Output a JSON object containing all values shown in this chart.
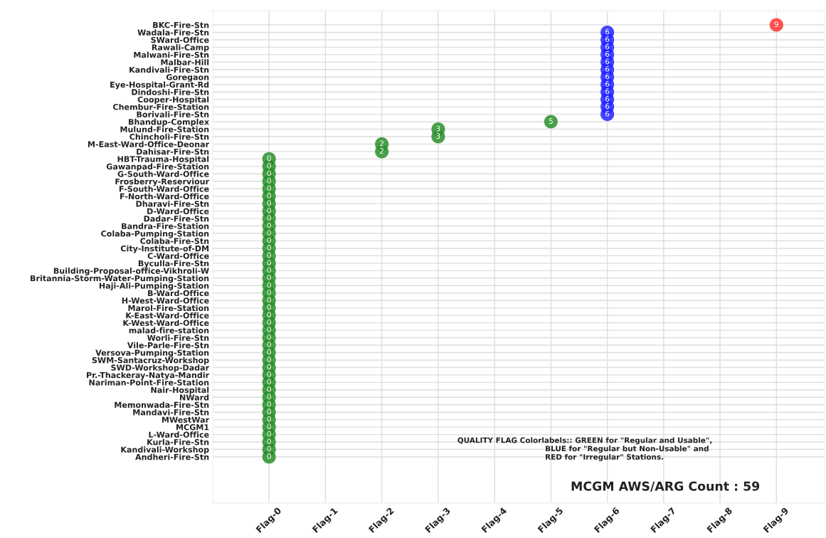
{
  "chart_data": {
    "type": "heatmap",
    "categories": [
      "Flag-0",
      "Flag-1",
      "Flag-2",
      "Flag-3",
      "Flag-4",
      "Flag-5",
      "Flag-6",
      "Flag-7",
      "Flag-8",
      "Flag-9"
    ],
    "y_categories": [
      "BKC-Fire-Stn",
      "Wadala-Fire-Stn",
      "SWard-Office",
      "Rawali-Camp",
      "Malwani-Fire-Stn",
      "Malbar-Hill",
      "Kandivali-Fire-Stn",
      "Goregaon",
      "Eye-Hospital-Grant-Rd",
      "Dindoshi-Fire-Stn",
      "Cooper-Hospital",
      "Chembur-Fire-Station",
      "Borivali-Fire-Stn",
      "Bhandup-Complex",
      "Mulund-Fire-Station",
      "Chincholi-Fire-Stn",
      "M-East-Ward-Office-Deonar",
      "Dahisar-Fire-Stn",
      "HBT-Trauma-Hospital",
      "Gawanpad-Fire-Station",
      "G-South-Ward-Office",
      "Frosberry-Reserviour",
      "F-South-Ward-Office",
      "F-North-Ward-Office",
      "Dharavi-Fire-Stn",
      "D-Ward-Office",
      "Dadar-Fire-Stn",
      "Bandra-Fire-Station",
      "Colaba-Pumping-Station",
      "Colaba-Fire-Stn",
      "City-Institute-of-DM",
      "C-Ward-Office",
      "Byculla-Fire-Stn",
      "Building-Proposal-office-Vikhroli-W",
      "Britannia-Storm-Water-Pumping-Station",
      "Haji-Ali-Pumping-Station",
      "B-Ward-Office",
      "H-West-Ward-Office",
      "Marol-Fire-Station",
      "K-East-Ward-Office",
      "K-West-Ward-Office",
      "malad-fire-station",
      "Worli-Fire-Stn",
      "Vile-Parle-Fire-Stn",
      "Versova-Pumping-Station",
      "SWM-Santacruz-Workshop",
      "SWD-Workshop-Dadar",
      "Pr.-Thackeray-Natya-Mandir",
      "Nariman-Point-Fire-Station",
      "Nair-Hospital",
      "NWard",
      "Memonwada-Fire-Stn",
      "Mandavi-Fire-Stn",
      "MWestWar",
      "MCGM1",
      "L-Ward-Office",
      "Kurla-Fire-Stn",
      "Kandivali-Workshop",
      "Andheri-Fire-Stn"
    ],
    "cells": [
      [
        null,
        null,
        null,
        null,
        null,
        null,
        null,
        null,
        null,
        9
      ],
      [
        null,
        null,
        null,
        null,
        null,
        null,
        6,
        null,
        null,
        null
      ],
      [
        null,
        null,
        null,
        null,
        null,
        null,
        6,
        null,
        null,
        null
      ],
      [
        null,
        null,
        null,
        null,
        null,
        null,
        6,
        null,
        null,
        null
      ],
      [
        null,
        null,
        null,
        null,
        null,
        null,
        6,
        null,
        null,
        null
      ],
      [
        null,
        null,
        null,
        null,
        null,
        null,
        6,
        null,
        null,
        null
      ],
      [
        null,
        null,
        null,
        null,
        null,
        null,
        6,
        null,
        null,
        null
      ],
      [
        null,
        null,
        null,
        null,
        null,
        null,
        6,
        null,
        null,
        null
      ],
      [
        null,
        null,
        null,
        null,
        null,
        null,
        6,
        null,
        null,
        null
      ],
      [
        null,
        null,
        null,
        null,
        null,
        null,
        6,
        null,
        null,
        null
      ],
      [
        null,
        null,
        null,
        null,
        null,
        null,
        6,
        null,
        null,
        null
      ],
      [
        null,
        null,
        null,
        null,
        null,
        null,
        6,
        null,
        null,
        null
      ],
      [
        null,
        null,
        null,
        null,
        null,
        null,
        6,
        null,
        null,
        null
      ],
      [
        null,
        null,
        null,
        null,
        null,
        5,
        null,
        null,
        null,
        null
      ],
      [
        null,
        null,
        null,
        3,
        null,
        null,
        null,
        null,
        null,
        null
      ],
      [
        null,
        null,
        null,
        3,
        null,
        null,
        null,
        null,
        null,
        null
      ],
      [
        null,
        null,
        2,
        null,
        null,
        null,
        null,
        null,
        null,
        null
      ],
      [
        null,
        null,
        2,
        null,
        null,
        null,
        null,
        null,
        null,
        null
      ],
      [
        0,
        null,
        null,
        null,
        null,
        null,
        null,
        null,
        null,
        null
      ],
      [
        0,
        null,
        null,
        null,
        null,
        null,
        null,
        null,
        null,
        null
      ],
      [
        0,
        null,
        null,
        null,
        null,
        null,
        null,
        null,
        null,
        null
      ],
      [
        0,
        null,
        null,
        null,
        null,
        null,
        null,
        null,
        null,
        null
      ],
      [
        0,
        null,
        null,
        null,
        null,
        null,
        null,
        null,
        null,
        null
      ],
      [
        0,
        null,
        null,
        null,
        null,
        null,
        null,
        null,
        null,
        null
      ],
      [
        0,
        null,
        null,
        null,
        null,
        null,
        null,
        null,
        null,
        null
      ],
      [
        0,
        null,
        null,
        null,
        null,
        null,
        null,
        null,
        null,
        null
      ],
      [
        0,
        null,
        null,
        null,
        null,
        null,
        null,
        null,
        null,
        null
      ],
      [
        0,
        null,
        null,
        null,
        null,
        null,
        null,
        null,
        null,
        null
      ],
      [
        0,
        null,
        null,
        null,
        null,
        null,
        null,
        null,
        null,
        null
      ],
      [
        0,
        null,
        null,
        null,
        null,
        null,
        null,
        null,
        null,
        null
      ],
      [
        0,
        null,
        null,
        null,
        null,
        null,
        null,
        null,
        null,
        null
      ],
      [
        0,
        null,
        null,
        null,
        null,
        null,
        null,
        null,
        null,
        null
      ],
      [
        0,
        null,
        null,
        null,
        null,
        null,
        null,
        null,
        null,
        null
      ],
      [
        0,
        null,
        null,
        null,
        null,
        null,
        null,
        null,
        null,
        null
      ],
      [
        0,
        null,
        null,
        null,
        null,
        null,
        null,
        null,
        null,
        null
      ],
      [
        0,
        null,
        null,
        null,
        null,
        null,
        null,
        null,
        null,
        null
      ],
      [
        0,
        null,
        null,
        null,
        null,
        null,
        null,
        null,
        null,
        null
      ],
      [
        0,
        null,
        null,
        null,
        null,
        null,
        null,
        null,
        null,
        null
      ],
      [
        0,
        null,
        null,
        null,
        null,
        null,
        null,
        null,
        null,
        null
      ],
      [
        0,
        null,
        null,
        null,
        null,
        null,
        null,
        null,
        null,
        null
      ],
      [
        0,
        null,
        null,
        null,
        null,
        null,
        null,
        null,
        null,
        null
      ],
      [
        0,
        null,
        null,
        null,
        null,
        null,
        null,
        null,
        null,
        null
      ],
      [
        0,
        null,
        null,
        null,
        null,
        null,
        null,
        null,
        null,
        null
      ],
      [
        0,
        null,
        null,
        null,
        null,
        null,
        null,
        null,
        null,
        null
      ],
      [
        0,
        null,
        null,
        null,
        null,
        null,
        null,
        null,
        null,
        null
      ],
      [
        0,
        null,
        null,
        null,
        null,
        null,
        null,
        null,
        null,
        null
      ],
      [
        0,
        null,
        null,
        null,
        null,
        null,
        null,
        null,
        null,
        null
      ],
      [
        0,
        null,
        null,
        null,
        null,
        null,
        null,
        null,
        null,
        null
      ],
      [
        0,
        null,
        null,
        null,
        null,
        null,
        null,
        null,
        null,
        null
      ],
      [
        0,
        null,
        null,
        null,
        null,
        null,
        null,
        null,
        null,
        null
      ],
      [
        0,
        null,
        null,
        null,
        null,
        null,
        null,
        null,
        null,
        null
      ],
      [
        0,
        null,
        null,
        null,
        null,
        null,
        null,
        null,
        null,
        null
      ],
      [
        0,
        null,
        null,
        null,
        null,
        null,
        null,
        null,
        null,
        null
      ],
      [
        0,
        null,
        null,
        null,
        null,
        null,
        null,
        null,
        null,
        null
      ],
      [
        0,
        null,
        null,
        null,
        null,
        null,
        null,
        null,
        null,
        null
      ],
      [
        0,
        null,
        null,
        null,
        null,
        null,
        null,
        null,
        null,
        null
      ],
      [
        0,
        null,
        null,
        null,
        null,
        null,
        null,
        null,
        null,
        null
      ],
      [
        0,
        null,
        null,
        null,
        null,
        null,
        null,
        null,
        null,
        null
      ],
      [
        0,
        null,
        null,
        null,
        null,
        null,
        null,
        null,
        null,
        null
      ]
    ],
    "colors": [
      "#ff3333",
      "#2222ff",
      "#2222ff",
      "#2222ff",
      "#2222ff",
      "#2222ff",
      "#2222ff",
      "#2222ff",
      "#2222ff",
      "#2222ff",
      "#2222ff",
      "#2222ff",
      "#2222ff",
      "#2a8f2a",
      "#2a8f2a",
      "#2a8f2a",
      "#2a8f2a",
      "#2a8f2a",
      "#2a8f2a",
      "#2a8f2a",
      "#2a8f2a",
      "#2a8f2a",
      "#2a8f2a",
      "#2a8f2a",
      "#2a8f2a",
      "#2a8f2a",
      "#2a8f2a",
      "#2a8f2a",
      "#2a8f2a",
      "#2a8f2a",
      "#2a8f2a",
      "#2a8f2a",
      "#2a8f2a",
      "#2a8f2a",
      "#2a8f2a",
      "#2a8f2a",
      "#2a8f2a",
      "#2a8f2a",
      "#2a8f2a",
      "#2a8f2a",
      "#2a8f2a",
      "#2a8f2a",
      "#2a8f2a",
      "#2a8f2a",
      "#2a8f2a",
      "#2a8f2a",
      "#2a8f2a",
      "#2a8f2a",
      "#2a8f2a",
      "#2a8f2a",
      "#2a8f2a",
      "#2a8f2a",
      "#2a8f2a",
      "#2a8f2a",
      "#2a8f2a",
      "#2a8f2a",
      "#2a8f2a",
      "#2a8f2a",
      "#2a8f2a"
    ],
    "grid": true,
    "data_labels": true,
    "annotations": [
      "QUALITY FLAG Colorlabels:: GREEN for \"Regular and Usable\",\n                                  BLUE for \"Regular but Non-Usable\" and\n                                  RED for \"Irregular\" Stations.",
      "MCGM AWS/ARG Count : 59"
    ]
  }
}
